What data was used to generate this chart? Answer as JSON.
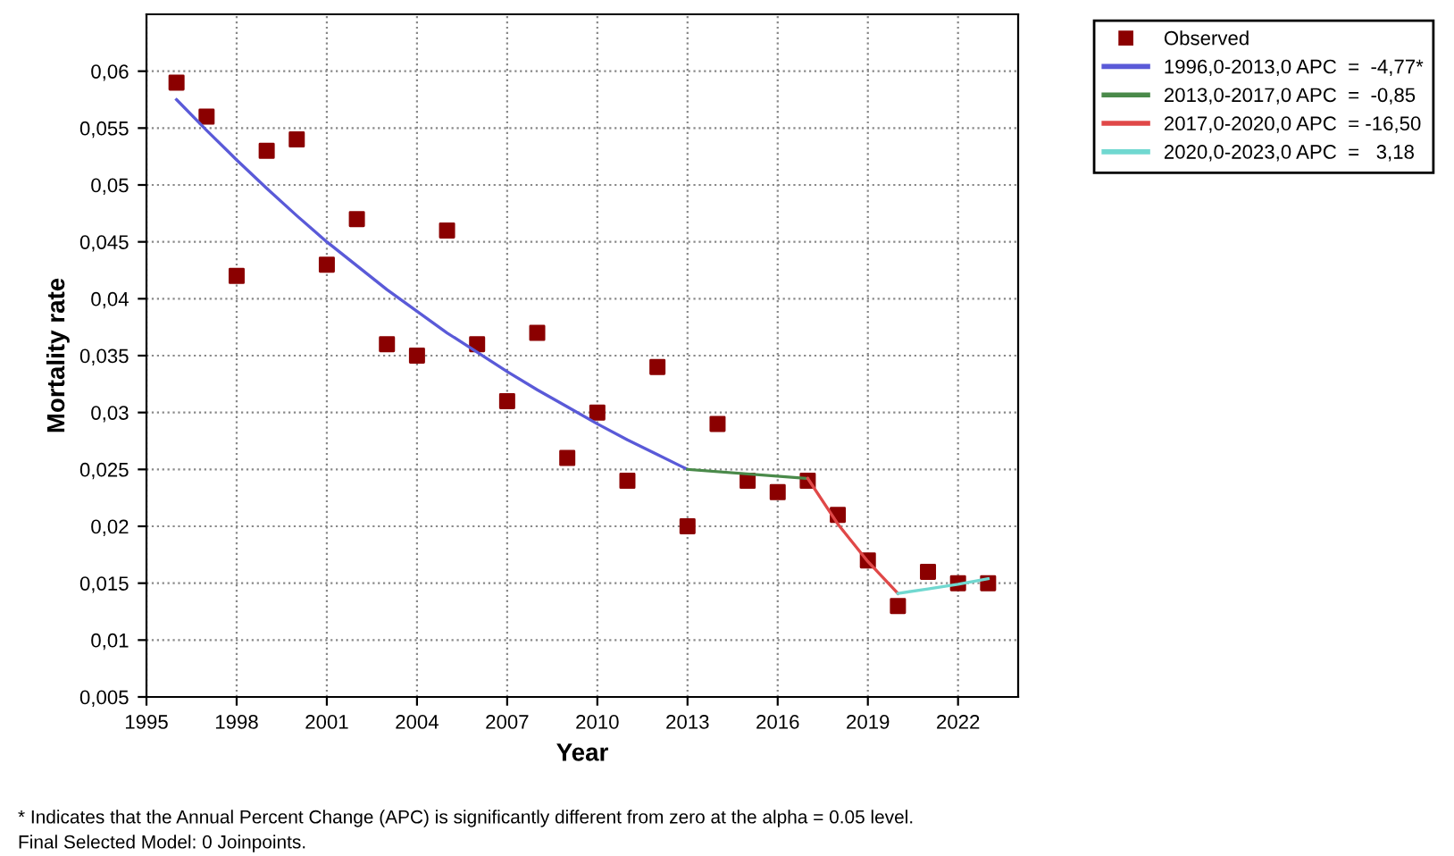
{
  "chart_data": {
    "type": "line",
    "xlabel": "Year",
    "ylabel": "Mortality rate",
    "xlim": [
      1995,
      2024
    ],
    "ylim": [
      0.005,
      0.065
    ],
    "xticks": [
      1995,
      1998,
      2001,
      2004,
      2007,
      2010,
      2013,
      2016,
      2019,
      2022
    ],
    "yticks": [
      {
        "value": 0.005,
        "label": "0,005"
      },
      {
        "value": 0.01,
        "label": "0,01"
      },
      {
        "value": 0.015,
        "label": "0,015"
      },
      {
        "value": 0.02,
        "label": "0,02"
      },
      {
        "value": 0.025,
        "label": "0,025"
      },
      {
        "value": 0.03,
        "label": "0,03"
      },
      {
        "value": 0.035,
        "label": "0,035"
      },
      {
        "value": 0.04,
        "label": "0,04"
      },
      {
        "value": 0.045,
        "label": "0,045"
      },
      {
        "value": 0.05,
        "label": "0,05"
      },
      {
        "value": 0.055,
        "label": "0,055"
      },
      {
        "value": 0.06,
        "label": "0,06"
      }
    ],
    "grid": true,
    "legend": "top right",
    "line_style": "solid",
    "series": [
      {
        "name": "Observed",
        "type": "scatter",
        "marker": "square",
        "color": "#8b0000",
        "x": [
          1996,
          1997,
          1998,
          1999,
          2000,
          2001,
          2002,
          2003,
          2004,
          2005,
          2006,
          2007,
          2008,
          2009,
          2010,
          2011,
          2012,
          2013,
          2014,
          2015,
          2016,
          2017,
          2018,
          2019,
          2020,
          2021,
          2022,
          2023
        ],
        "values": [
          0.059,
          0.056,
          0.042,
          0.053,
          0.054,
          0.043,
          0.047,
          0.036,
          0.035,
          0.046,
          0.036,
          0.031,
          0.037,
          0.026,
          0.03,
          0.024,
          0.034,
          0.02,
          0.029,
          0.024,
          0.023,
          0.024,
          0.021,
          0.017,
          0.013,
          0.016,
          0.015,
          0.015
        ]
      },
      {
        "name": "1996,0-2013,0 APC  =  -4,77*",
        "color": "#5a5ad8",
        "x": [
          1996,
          1997,
          1998,
          1999,
          2000,
          2001,
          2002,
          2003,
          2004,
          2005,
          2006,
          2007,
          2008,
          2009,
          2010,
          2011,
          2012,
          2013
        ],
        "values": [
          0.0575,
          0.0548,
          0.0522,
          0.0497,
          0.0473,
          0.045,
          0.0429,
          0.0408,
          0.0389,
          0.037,
          0.0353,
          0.0336,
          0.032,
          0.0305,
          0.029,
          0.0276,
          0.0263,
          0.025
        ]
      },
      {
        "name": "2013,0-2017,0 APC  =  -0,85",
        "color": "#4a8a4a",
        "x": [
          2013,
          2017
        ],
        "values": [
          0.025,
          0.0242
        ]
      },
      {
        "name": "2017,0-2020,0 APC  = -16,50",
        "color": "#e04848",
        "x": [
          2017,
          2018,
          2019,
          2020
        ],
        "values": [
          0.0242,
          0.0202,
          0.0169,
          0.0141
        ]
      },
      {
        "name": "2020,0-2023,0 APC  =   3,18",
        "color": "#70d8d0",
        "x": [
          2020,
          2021,
          2022,
          2023
        ],
        "values": [
          0.0141,
          0.0145,
          0.0149,
          0.0154
        ]
      }
    ],
    "annotations": [
      "* Indicates that the Annual Percent Change (APC) is significantly different from zero at the alpha = 0.05 level.",
      "Final Selected Model: 0 Joinpoints."
    ]
  }
}
